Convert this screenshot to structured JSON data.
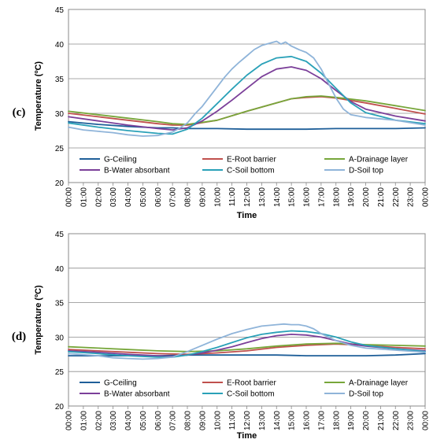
{
  "chart_data": [
    {
      "type": "line",
      "panel_label": "(c)",
      "xlabel": "Time",
      "ylabel": "Temperature (ºC)",
      "ylim": [
        20,
        45
      ],
      "yticks": [
        20,
        25,
        30,
        35,
        40,
        45
      ],
      "xlim": [
        0,
        24
      ],
      "xticks": [
        "00:00",
        "01:00",
        "02:00",
        "03:00",
        "04:00",
        "05:00",
        "06:00",
        "07:00",
        "08:00",
        "09:00",
        "10:00",
        "11:00",
        "12:00",
        "13:00",
        "14:00",
        "15:00",
        "16:00",
        "17:00",
        "18:00",
        "19:00",
        "20:00",
        "21:00",
        "22:00",
        "23:00",
        "00:00"
      ],
      "grid": true,
      "legend_position": "bottom-inside",
      "series": [
        {
          "name": "G-Ceiling",
          "color": "#1f5f99",
          "x": [
            0,
            2,
            4,
            6,
            7,
            8,
            10,
            12,
            14,
            16,
            18,
            20,
            22,
            24
          ],
          "y": [
            28.8,
            28.4,
            28.1,
            27.9,
            27.9,
            27.8,
            27.8,
            27.7,
            27.7,
            27.7,
            27.8,
            27.8,
            27.8,
            27.9
          ]
        },
        {
          "name": "E-Root barrier",
          "color": "#c0504d",
          "x": [
            0,
            2,
            4,
            6,
            7,
            8,
            10,
            12,
            14,
            15,
            16,
            17,
            18,
            20,
            22,
            24
          ],
          "y": [
            30.0,
            29.5,
            29.0,
            28.5,
            28.3,
            28.3,
            29.0,
            30.3,
            31.5,
            32.1,
            32.3,
            32.4,
            32.2,
            31.5,
            30.7,
            29.9
          ]
        },
        {
          "name": "A-Drainage layer",
          "color": "#77a63a",
          "x": [
            0,
            2,
            4,
            6,
            7,
            8,
            10,
            12,
            14,
            15,
            16,
            17,
            18,
            20,
            22,
            24
          ],
          "y": [
            30.3,
            29.8,
            29.3,
            28.8,
            28.5,
            28.4,
            29.0,
            30.3,
            31.5,
            32.1,
            32.4,
            32.5,
            32.3,
            31.8,
            31.1,
            30.4
          ]
        },
        {
          "name": "B-Water absorbant",
          "color": "#7b3f99",
          "x": [
            0,
            2,
            4,
            6,
            7,
            8,
            9,
            10,
            11,
            12,
            13,
            14,
            15,
            16,
            17,
            18,
            19,
            20,
            22,
            24
          ],
          "y": [
            29.5,
            28.9,
            28.3,
            27.8,
            27.6,
            27.9,
            28.9,
            30.3,
            31.9,
            33.6,
            35.3,
            36.4,
            36.7,
            36.2,
            35.0,
            33.3,
            31.7,
            30.6,
            29.6,
            28.9
          ]
        },
        {
          "name": "C-Soil bottom",
          "color": "#2aa1b8",
          "x": [
            0,
            2,
            4,
            6,
            7,
            8,
            9,
            10,
            11,
            12,
            13,
            14,
            15,
            16,
            17,
            18,
            19,
            20,
            22,
            24
          ],
          "y": [
            28.6,
            28.0,
            27.5,
            27.1,
            27.0,
            27.7,
            29.3,
            31.4,
            33.5,
            35.5,
            37.1,
            38.0,
            38.2,
            37.5,
            35.8,
            33.6,
            31.5,
            30.1,
            29.0,
            28.5
          ]
        },
        {
          "name": "D-Soil top",
          "color": "#8fb4d9",
          "x": [
            0,
            1,
            2,
            3,
            4,
            5,
            6,
            7,
            7.5,
            8,
            8.5,
            9,
            9.5,
            10,
            10.5,
            11,
            11.5,
            12,
            12.5,
            13,
            13.5,
            14,
            14.3,
            14.6,
            15,
            15.5,
            16,
            16.5,
            17,
            17.5,
            18,
            18.5,
            19,
            20,
            22,
            24
          ],
          "y": [
            28.0,
            27.6,
            27.4,
            27.2,
            26.9,
            26.7,
            26.8,
            27.3,
            27.9,
            28.6,
            29.9,
            31.0,
            32.4,
            33.8,
            35.2,
            36.4,
            37.4,
            38.3,
            39.2,
            39.8,
            40.1,
            40.4,
            40.0,
            40.3,
            39.7,
            39.2,
            38.8,
            38.0,
            36.4,
            34.3,
            32.2,
            30.6,
            29.8,
            29.4,
            29.0,
            28.3
          ]
        }
      ]
    },
    {
      "type": "line",
      "panel_label": "(d)",
      "xlabel": "Time",
      "ylabel": "Temperature (ºC)",
      "ylim": [
        20,
        45
      ],
      "yticks": [
        20,
        25,
        30,
        35,
        40,
        45
      ],
      "xlim": [
        0,
        24
      ],
      "xticks": [
        "00:00",
        "01:00",
        "02:00",
        "03:00",
        "04:00",
        "05:00",
        "06:00",
        "07:00",
        "08:00",
        "09:00",
        "10:00",
        "11:00",
        "12:00",
        "13:00",
        "14:00",
        "15:00",
        "16:00",
        "17:00",
        "18:00",
        "19:00",
        "20:00",
        "21:00",
        "22:00",
        "23:00",
        "00:00"
      ],
      "grid": true,
      "legend_position": "bottom-inside",
      "series": [
        {
          "name": "G-Ceiling",
          "color": "#1f5f99",
          "x": [
            0,
            2,
            4,
            6,
            8,
            10,
            12,
            14,
            16,
            18,
            20,
            22,
            24
          ],
          "y": [
            27.3,
            27.3,
            27.3,
            27.3,
            27.4,
            27.4,
            27.4,
            27.4,
            27.3,
            27.3,
            27.3,
            27.4,
            27.6
          ]
        },
        {
          "name": "E-Root barrier",
          "color": "#c0504d",
          "x": [
            0,
            2,
            4,
            6,
            8,
            10,
            12,
            14,
            16,
            18,
            20,
            22,
            24
          ],
          "y": [
            28.2,
            28.0,
            27.8,
            27.6,
            27.5,
            27.7,
            28.0,
            28.5,
            28.8,
            29.0,
            28.8,
            28.5,
            28.3
          ]
        },
        {
          "name": "A-Drainage layer",
          "color": "#77a63a",
          "x": [
            0,
            2,
            4,
            6,
            8,
            10,
            12,
            14,
            16,
            18,
            20,
            22,
            24
          ],
          "y": [
            28.6,
            28.4,
            28.2,
            28.0,
            27.9,
            28.0,
            28.3,
            28.7,
            29.0,
            29.1,
            28.9,
            28.8,
            28.7
          ]
        },
        {
          "name": "B-Water absorbant",
          "color": "#7b3f99",
          "x": [
            0,
            2,
            4,
            6,
            7,
            8,
            9,
            10,
            11,
            12,
            13,
            14,
            15,
            16,
            17,
            18,
            19,
            20,
            22,
            24
          ],
          "y": [
            28.0,
            27.8,
            27.5,
            27.3,
            27.2,
            27.4,
            27.7,
            28.1,
            28.6,
            29.2,
            29.8,
            30.2,
            30.4,
            30.3,
            30.0,
            29.5,
            29.0,
            28.7,
            28.3,
            28.0
          ]
        },
        {
          "name": "C-Soil bottom",
          "color": "#2aa1b8",
          "x": [
            0,
            2,
            4,
            6,
            7,
            8,
            9,
            10,
            11,
            12,
            13,
            14,
            15,
            16,
            17,
            18,
            19,
            20,
            22,
            24
          ],
          "y": [
            27.9,
            27.6,
            27.3,
            27.1,
            27.1,
            27.4,
            27.9,
            28.5,
            29.2,
            29.9,
            30.4,
            30.7,
            30.9,
            30.8,
            30.5,
            30.0,
            29.3,
            28.8,
            28.3,
            27.9
          ]
        },
        {
          "name": "D-Soil top",
          "color": "#8fb4d9",
          "x": [
            0,
            2,
            3,
            4,
            5,
            6,
            7,
            8,
            9,
            10,
            11,
            12,
            13,
            14,
            14.5,
            15,
            15.5,
            16,
            16.5,
            17,
            18,
            19,
            20,
            22,
            24
          ],
          "y": [
            27.6,
            27.3,
            27.0,
            26.9,
            26.8,
            26.9,
            27.1,
            27.9,
            28.8,
            29.7,
            30.5,
            31.1,
            31.6,
            31.8,
            31.9,
            31.8,
            31.8,
            31.6,
            31.2,
            30.5,
            29.5,
            28.8,
            28.4,
            28.1,
            27.8
          ]
        }
      ]
    }
  ]
}
